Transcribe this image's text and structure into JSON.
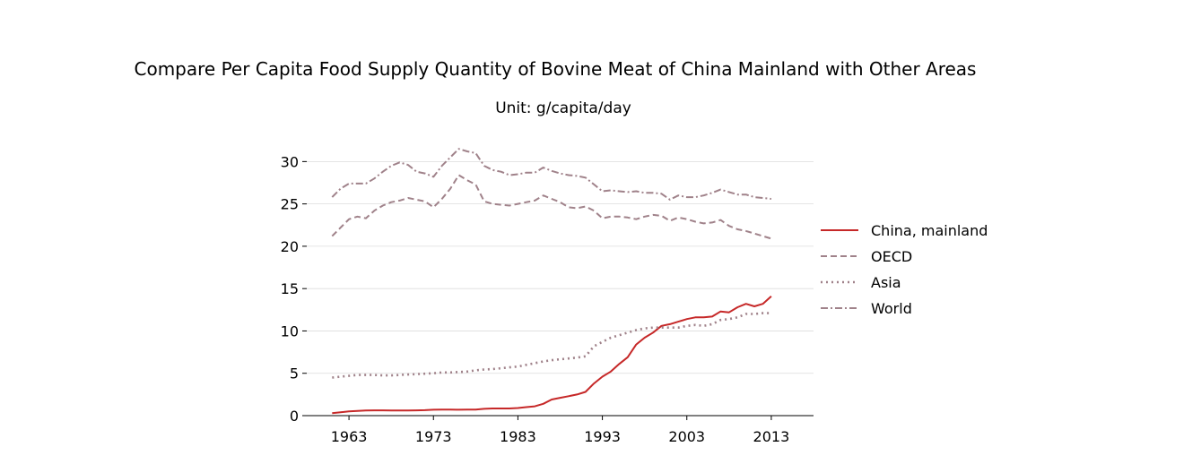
{
  "chart_data": {
    "type": "line",
    "title": "Compare Per Capita Food Supply Quantity of Bovine Meat of China Mainland with Other Areas",
    "subtitle": "Unit: g/capita/day",
    "xlabel": "",
    "ylabel": "",
    "xlim": [
      1958,
      2018
    ],
    "ylim": [
      0,
      33
    ],
    "xticks": [
      1963,
      1973,
      1983,
      1993,
      2003,
      2013
    ],
    "yticks": [
      0,
      5,
      10,
      15,
      20,
      25,
      30
    ],
    "grid": "horizontal",
    "legend_position": "right",
    "x": [
      1961,
      1962,
      1963,
      1964,
      1965,
      1966,
      1967,
      1968,
      1969,
      1970,
      1971,
      1972,
      1973,
      1974,
      1975,
      1976,
      1977,
      1978,
      1979,
      1980,
      1981,
      1982,
      1983,
      1984,
      1985,
      1986,
      1987,
      1988,
      1989,
      1990,
      1991,
      1992,
      1993,
      1994,
      1995,
      1996,
      1997,
      1998,
      1999,
      2000,
      2001,
      2002,
      2003,
      2004,
      2005,
      2006,
      2007,
      2008,
      2009,
      2010,
      2011,
      2012,
      2013
    ],
    "series": [
      {
        "name": "China, mainland",
        "color": "#c62828",
        "dash": "solid",
        "values": [
          0.3,
          0.4,
          0.5,
          0.55,
          0.6,
          0.62,
          0.62,
          0.6,
          0.6,
          0.6,
          0.62,
          0.65,
          0.7,
          0.72,
          0.72,
          0.7,
          0.72,
          0.72,
          0.8,
          0.85,
          0.85,
          0.85,
          0.9,
          1.0,
          1.1,
          1.4,
          1.9,
          2.1,
          2.3,
          2.5,
          2.8,
          3.8,
          4.6,
          5.2,
          6.1,
          6.9,
          8.4,
          9.2,
          9.8,
          10.6,
          10.8,
          11.1,
          11.4,
          11.6,
          11.6,
          11.7,
          12.3,
          12.2,
          12.8,
          13.2,
          12.9,
          13.2,
          14.1
        ]
      },
      {
        "name": "OECD",
        "color": "#a0828a",
        "dash": "dashed",
        "values": [
          21.2,
          22.2,
          23.2,
          23.5,
          23.3,
          24.2,
          24.8,
          25.2,
          25.4,
          25.7,
          25.5,
          25.3,
          24.6,
          25.6,
          26.8,
          28.4,
          27.8,
          27.3,
          25.3,
          25.0,
          24.9,
          24.8,
          25.0,
          25.2,
          25.4,
          26.0,
          25.6,
          25.2,
          24.6,
          24.5,
          24.7,
          24.2,
          23.3,
          23.5,
          23.5,
          23.4,
          23.2,
          23.5,
          23.7,
          23.6,
          23.0,
          23.4,
          23.2,
          22.9,
          22.7,
          22.8,
          23.1,
          22.4,
          22.0,
          21.8,
          21.5,
          21.2,
          20.9
        ]
      },
      {
        "name": "Asia",
        "color": "#a0828a",
        "dash": "dotted",
        "values": [
          4.5,
          4.6,
          4.7,
          4.8,
          4.8,
          4.8,
          4.75,
          4.75,
          4.8,
          4.85,
          4.9,
          4.95,
          5.0,
          5.1,
          5.1,
          5.15,
          5.2,
          5.35,
          5.45,
          5.5,
          5.6,
          5.7,
          5.8,
          6.0,
          6.2,
          6.4,
          6.55,
          6.65,
          6.75,
          6.85,
          7.0,
          8.2,
          8.7,
          9.2,
          9.5,
          9.8,
          10.1,
          10.3,
          10.4,
          10.4,
          10.4,
          10.4,
          10.6,
          10.7,
          10.6,
          10.8,
          11.3,
          11.4,
          11.6,
          12.0,
          12.0,
          12.1,
          12.1
        ]
      },
      {
        "name": "World",
        "color": "#a0828a",
        "dash": "dashdot",
        "values": [
          25.8,
          26.8,
          27.4,
          27.4,
          27.4,
          28.0,
          28.8,
          29.5,
          29.9,
          29.6,
          28.8,
          28.6,
          28.2,
          29.5,
          30.5,
          31.5,
          31.2,
          31.0,
          29.5,
          29.0,
          28.8,
          28.4,
          28.5,
          28.7,
          28.7,
          29.3,
          28.9,
          28.6,
          28.4,
          28.3,
          28.1,
          27.3,
          26.5,
          26.6,
          26.5,
          26.4,
          26.5,
          26.3,
          26.3,
          26.2,
          25.5,
          26.0,
          25.8,
          25.8,
          26.0,
          26.3,
          26.7,
          26.4,
          26.1,
          26.1,
          25.8,
          25.7,
          25.6
        ]
      }
    ]
  }
}
